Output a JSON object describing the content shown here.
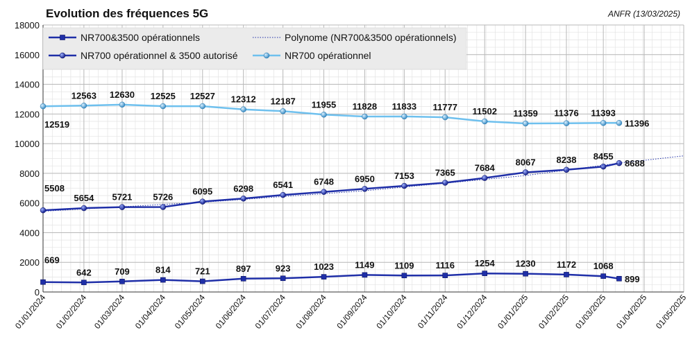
{
  "chart_data": {
    "type": "line",
    "title": "Evolution des fréquences 5G",
    "source": "ANFR (13/03/2025)",
    "x_ticks": [
      "01/01/2024",
      "01/02/2024",
      "01/03/2024",
      "01/04/2024",
      "01/05/2024",
      "01/06/2024",
      "01/07/2024",
      "01/08/2024",
      "01/09/2024",
      "01/10/2024",
      "01/11/2024",
      "01/12/2024",
      "01/01/2025",
      "01/02/2025",
      "01/03/2025",
      "01/04/2025",
      "01/05/2025"
    ],
    "x_points": [
      "01/01/2024",
      "01/02/2024",
      "01/03/2024",
      "01/04/2024",
      "01/05/2024",
      "01/06/2024",
      "01/07/2024",
      "01/08/2024",
      "01/09/2024",
      "01/10/2024",
      "01/11/2024",
      "01/12/2024",
      "01/01/2025",
      "01/02/2025",
      "01/03/2025",
      "13/03/2025"
    ],
    "ylim": [
      0,
      18000
    ],
    "yticks": [
      0,
      2000,
      4000,
      6000,
      8000,
      10000,
      12000,
      14000,
      16000,
      18000
    ],
    "grid": true,
    "legend": "top-left",
    "series": [
      {
        "name": "NR700&3500 opérationnels",
        "color": "#1f2fa8",
        "marker": "square",
        "values": [
          669,
          642,
          709,
          814,
          721,
          897,
          923,
          1023,
          1149,
          1109,
          1116,
          1254,
          1230,
          1172,
          1068,
          899
        ]
      },
      {
        "name": "NR700 opérationnel & 3500 autorisé",
        "color": "#1f2fa8",
        "marker": "sphere",
        "values": [
          5508,
          5654,
          5721,
          5726,
          6095,
          6298,
          6541,
          6748,
          6950,
          7153,
          7365,
          7684,
          8067,
          8238,
          8455,
          8688
        ]
      },
      {
        "name": "NR700 opérationnel",
        "color": "#6ec0ee",
        "marker": "sphere",
        "values": [
          12519,
          12563,
          12630,
          12525,
          12527,
          12312,
          12187,
          11955,
          11828,
          11833,
          11777,
          11502,
          11359,
          11376,
          11393,
          11396
        ]
      },
      {
        "name": "Polynome (NR700&3500 opérationnels)",
        "color": "#1f2fa8",
        "style": "dotted",
        "x": [
          "01/01/2024",
          "01/05/2024",
          "01/09/2024",
          "01/01/2025",
          "13/03/2025",
          "01/05/2025"
        ],
        "values": [
          5440,
          6050,
          6820,
          7850,
          8688,
          9180
        ]
      }
    ]
  }
}
